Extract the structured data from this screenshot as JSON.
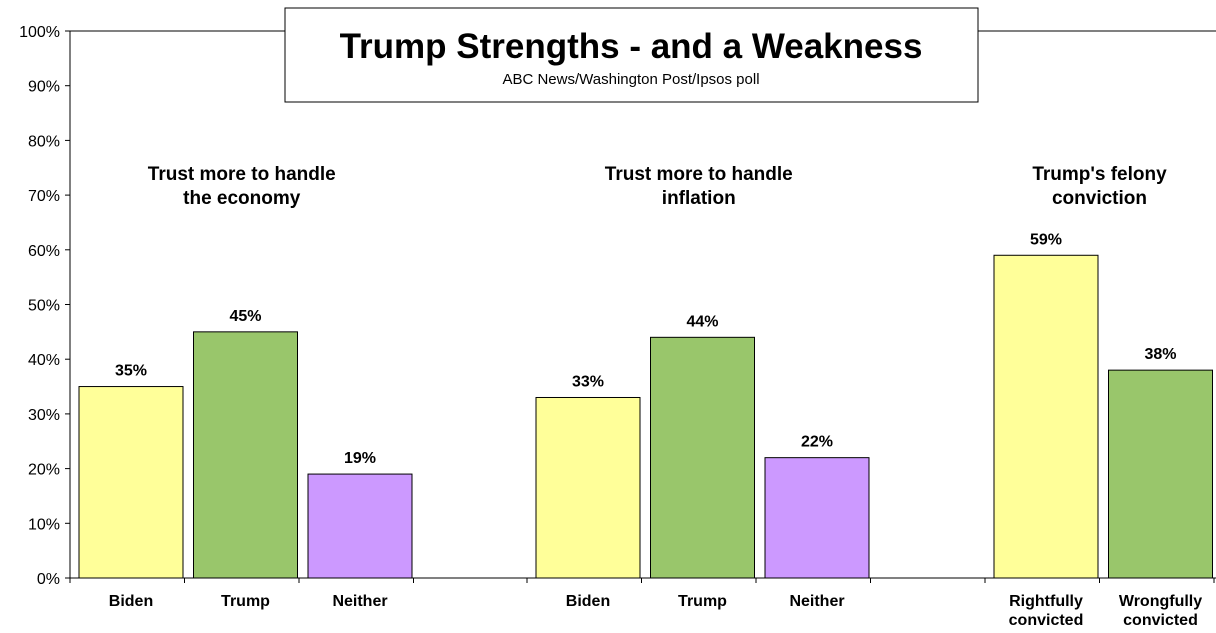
{
  "chart_data": {
    "type": "bar",
    "title": "Trump Strengths - and a Weakness",
    "subtitle": "ABC News/Washington  Post/Ipsos poll",
    "ylim": [
      0,
      100
    ],
    "yticks": [
      "0%",
      "10%",
      "20%",
      "30%",
      "40%",
      "50%",
      "60%",
      "70%",
      "80%",
      "90%",
      "100%"
    ],
    "grid": false,
    "groups": [
      {
        "heading": [
          "Trust more to handle",
          "the economy"
        ],
        "bars": [
          {
            "label": [
              "Biden"
            ],
            "value": 35,
            "value_label": "35%",
            "color": "#ffff99"
          },
          {
            "label": [
              "Trump"
            ],
            "value": 45,
            "value_label": "45%",
            "color": "#99c66b"
          },
          {
            "label": [
              "Neither"
            ],
            "value": 19,
            "value_label": "19%",
            "color": "#cc99ff"
          }
        ]
      },
      {
        "heading": [
          "Trust more to handle",
          "inflation"
        ],
        "bars": [
          {
            "label": [
              "Biden"
            ],
            "value": 33,
            "value_label": "33%",
            "color": "#ffff99"
          },
          {
            "label": [
              "Trump"
            ],
            "value": 44,
            "value_label": "44%",
            "color": "#99c66b"
          },
          {
            "label": [
              "Neither"
            ],
            "value": 22,
            "value_label": "22%",
            "color": "#cc99ff"
          }
        ]
      },
      {
        "heading": [
          "Trump's felony",
          "conviction"
        ],
        "bars": [
          {
            "label": [
              "Rightfully",
              "convicted"
            ],
            "value": 59,
            "value_label": "59%",
            "color": "#ffff99"
          },
          {
            "label": [
              "Wrongfully",
              "convicted"
            ],
            "value": 38,
            "value_label": "38%",
            "color": "#99c66b"
          }
        ]
      }
    ]
  }
}
